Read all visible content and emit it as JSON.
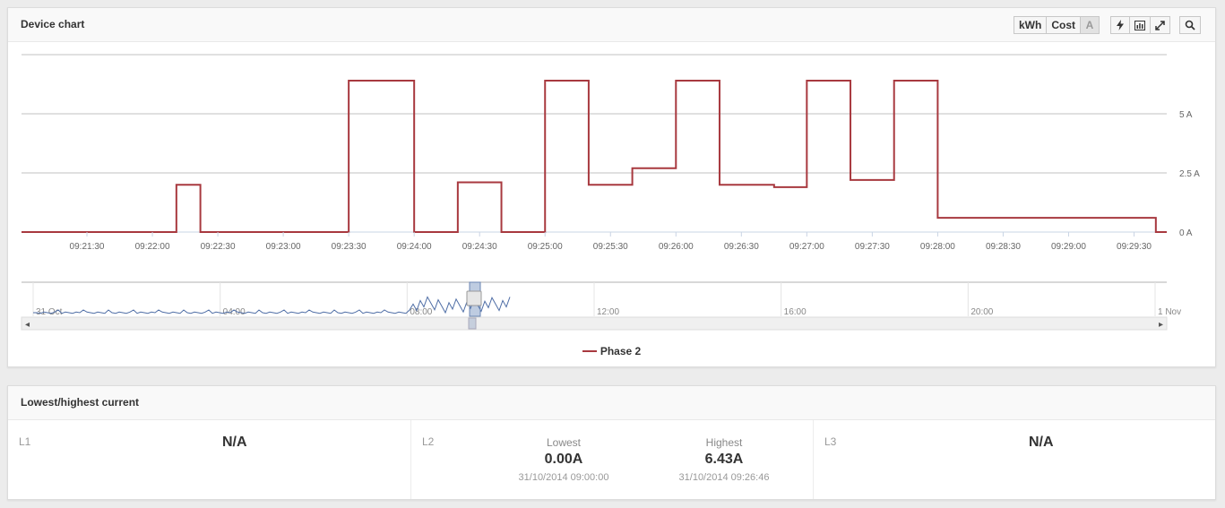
{
  "chart_panel": {
    "title": "Device chart",
    "toolbar": {
      "kwh_label": "kWh",
      "cost_label": "Cost",
      "amp_label": "A",
      "icons": [
        "lightning-icon",
        "bar-chart-icon",
        "expand-icon",
        "zoom-icon"
      ]
    }
  },
  "chart_data": {
    "type": "line",
    "series": [
      {
        "name": "Phase 2",
        "color": "#a8393f",
        "step": true,
        "x": [
          "09:21:00",
          "09:22:11",
          "09:22:22",
          "09:23:20",
          "09:23:30",
          "09:24:00",
          "09:24:20",
          "09:24:40",
          "09:25:00",
          "09:25:20",
          "09:25:40",
          "09:26:00",
          "09:26:20",
          "09:26:45",
          "09:27:00",
          "09:27:20",
          "09:27:40",
          "09:28:00",
          "09:28:00",
          "09:29:40"
        ],
        "values": [
          0,
          2,
          0,
          0,
          6.4,
          0,
          2.1,
          0,
          6.4,
          2,
          2.7,
          6.4,
          2,
          1.9,
          6.4,
          2.2,
          6.4,
          1.5,
          0.6,
          0
        ]
      }
    ],
    "x_ticks": [
      "09:21:30",
      "09:22:00",
      "09:22:30",
      "09:23:00",
      "09:23:30",
      "09:24:00",
      "09:24:30",
      "09:25:00",
      "09:25:30",
      "09:26:00",
      "09:26:30",
      "09:27:00",
      "09:27:30",
      "09:28:00",
      "09:28:30",
      "09:29:00",
      "09:29:30"
    ],
    "y_ticks": [
      "0 A",
      "2.5 A",
      "5 A"
    ],
    "y_range": [
      0,
      7.5
    ],
    "x_range": [
      "09:21:00",
      "09:29:45"
    ],
    "grid": true,
    "legend": "bottom-center"
  },
  "navigator": {
    "labels": [
      "31 Oct",
      "04:00",
      "08:00",
      "12:00",
      "16:00",
      "20:00",
      "1 Nov"
    ],
    "left_arrow": "◂",
    "right_arrow": "▸"
  },
  "legend_label": "Phase 2",
  "stats_panel": {
    "title": "Lowest/highest current",
    "l1": {
      "label": "L1",
      "value": "N/A"
    },
    "l2": {
      "label": "L2",
      "lowest_label": "Lowest",
      "lowest_value": "0.00A",
      "lowest_date": "31/10/2014 09:00:00",
      "highest_label": "Highest",
      "highest_value": "6.43A",
      "highest_date": "31/10/2014 09:26:46"
    },
    "l3": {
      "label": "L3",
      "value": "N/A"
    }
  }
}
